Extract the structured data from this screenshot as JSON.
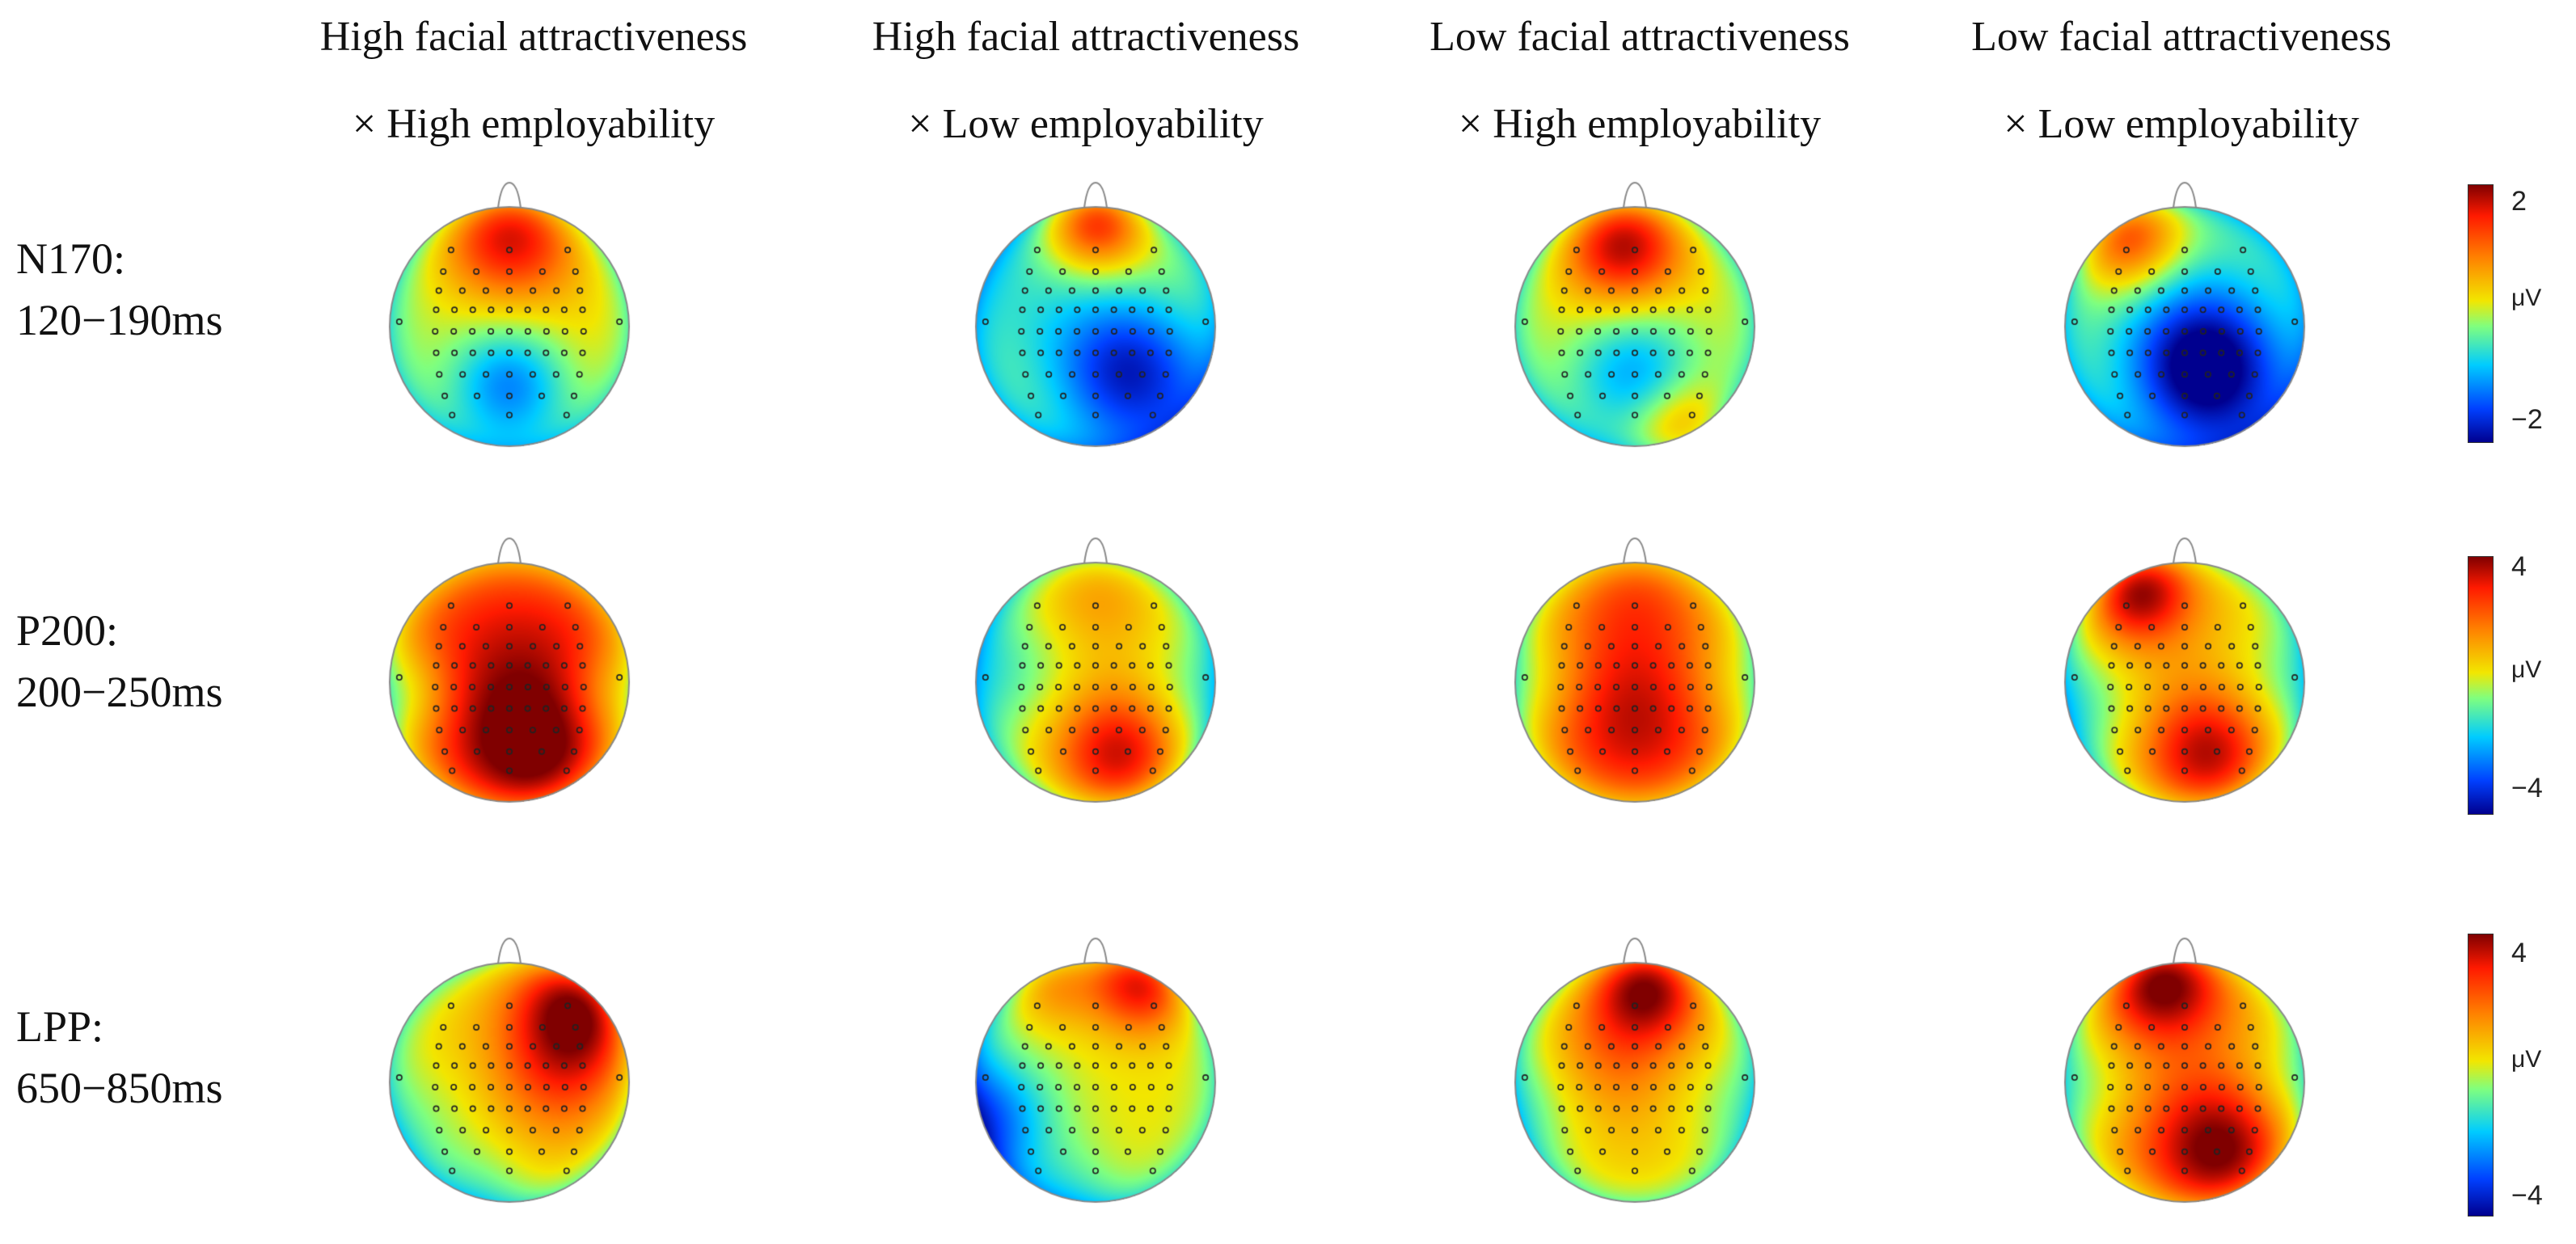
{
  "columns": [
    {
      "line1": "High facial attractiveness",
      "line2": "× High employability"
    },
    {
      "line1": "High facial attractiveness",
      "line2": "× Low employability"
    },
    {
      "line1": "Low facial attractiveness",
      "line2": "× High employability"
    },
    {
      "line1": "Low facial attractiveness",
      "line2": "× Low employability"
    }
  ],
  "rows": [
    {
      "component": "N170:",
      "window": "120−190ms",
      "colorbar": {
        "max_label": "2",
        "min_label": "−2",
        "unit": "μV"
      }
    },
    {
      "component": "P200:",
      "window": "200−250ms",
      "colorbar": {
        "max_label": "4",
        "min_label": "−4",
        "unit": "μV"
      }
    },
    {
      "component": "LPP:",
      "window": "650−850ms",
      "colorbar": {
        "max_label": "4",
        "min_label": "−4",
        "unit": "μV"
      }
    }
  ],
  "topomaps": [
    [
      {
        "base": 0.15,
        "blobs": [
          [
            0.5,
            0.1,
            0.75,
            0.2
          ],
          [
            0.5,
            0.75,
            -0.7,
            0.18
          ],
          [
            0.1,
            0.5,
            -0.1,
            0.25
          ]
        ]
      },
      {
        "base": 0.1,
        "blobs": [
          [
            0.5,
            0.05,
            0.85,
            0.15
          ],
          [
            0.65,
            0.7,
            -0.95,
            0.24
          ],
          [
            0.2,
            0.35,
            -0.3,
            0.3
          ]
        ]
      },
      {
        "base": 0.1,
        "blobs": [
          [
            0.45,
            0.15,
            0.85,
            0.18
          ],
          [
            0.5,
            0.7,
            -0.6,
            0.2
          ],
          [
            0.7,
            0.95,
            0.5,
            0.15
          ]
        ]
      },
      {
        "base": 0.05,
        "blobs": [
          [
            0.25,
            0.1,
            0.85,
            0.17
          ],
          [
            0.6,
            0.7,
            -1.0,
            0.23
          ],
          [
            0.5,
            0.45,
            -0.35,
            0.3
          ]
        ]
      }
    ],
    [
      {
        "base": 0.5,
        "blobs": [
          [
            0.55,
            0.55,
            0.45,
            0.35
          ],
          [
            0.6,
            0.8,
            0.35,
            0.2
          ],
          [
            0.05,
            0.55,
            -0.5,
            0.16
          ],
          [
            0.95,
            0.55,
            -0.4,
            0.16
          ]
        ]
      },
      {
        "base": 0.15,
        "blobs": [
          [
            0.6,
            0.8,
            0.75,
            0.2
          ],
          [
            0.5,
            0.1,
            0.25,
            0.2
          ],
          [
            0.1,
            0.45,
            -0.35,
            0.22
          ],
          [
            0.95,
            0.55,
            -0.3,
            0.2
          ]
        ]
      },
      {
        "base": 0.35,
        "blobs": [
          [
            0.5,
            0.65,
            0.55,
            0.28
          ],
          [
            0.5,
            0.1,
            0.25,
            0.2
          ],
          [
            0.05,
            0.5,
            -0.35,
            0.18
          ],
          [
            0.95,
            0.5,
            -0.3,
            0.18
          ]
        ]
      },
      {
        "base": 0.25,
        "blobs": [
          [
            0.3,
            0.1,
            0.85,
            0.16
          ],
          [
            0.6,
            0.8,
            0.7,
            0.2
          ],
          [
            0.05,
            0.6,
            -0.4,
            0.2
          ],
          [
            0.95,
            0.5,
            -0.35,
            0.2
          ]
        ]
      }
    ],
    [
      {
        "base": 0.2,
        "blobs": [
          [
            0.8,
            0.15,
            0.85,
            0.2
          ],
          [
            0.7,
            0.45,
            0.4,
            0.2
          ],
          [
            0.1,
            0.7,
            -0.25,
            0.22
          ],
          [
            0.4,
            0.95,
            -0.2,
            0.15
          ]
        ]
      },
      {
        "base": 0.1,
        "blobs": [
          [
            0.7,
            0.05,
            0.9,
            0.16
          ],
          [
            0.3,
            0.05,
            0.4,
            0.14
          ],
          [
            0.05,
            0.65,
            -0.7,
            0.2
          ],
          [
            0.4,
            0.95,
            -0.2,
            0.15
          ]
        ]
      },
      {
        "base": 0.2,
        "blobs": [
          [
            0.55,
            0.08,
            0.85,
            0.17
          ],
          [
            0.4,
            0.4,
            0.3,
            0.2
          ],
          [
            0.05,
            0.6,
            -0.3,
            0.2
          ],
          [
            0.95,
            0.6,
            -0.25,
            0.2
          ]
        ]
      },
      {
        "base": 0.35,
        "blobs": [
          [
            0.4,
            0.05,
            0.85,
            0.18
          ],
          [
            0.65,
            0.78,
            0.75,
            0.22
          ],
          [
            0.05,
            0.5,
            -0.35,
            0.18
          ],
          [
            0.95,
            0.5,
            -0.35,
            0.18
          ]
        ]
      }
    ]
  ]
}
